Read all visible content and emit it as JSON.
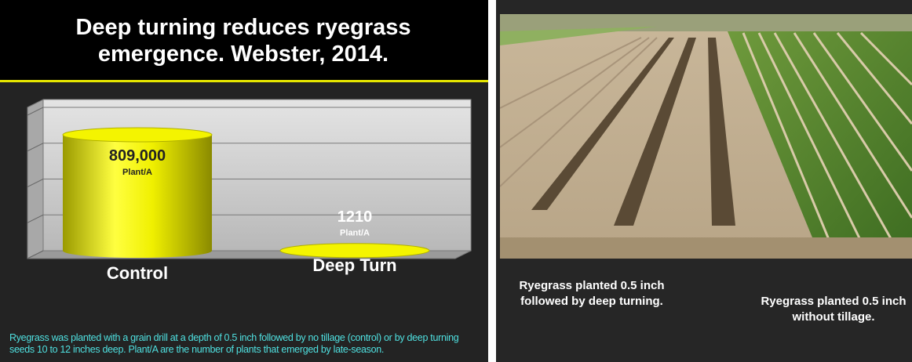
{
  "chart_data": {
    "type": "bar",
    "title": "Deep turning reduces ryegrass emergence.  Webster, 2014.",
    "categories": [
      "Control",
      "Deep Turn"
    ],
    "values": [
      809000,
      1210
    ],
    "value_labels": [
      "809,000",
      "1210"
    ],
    "value_unit": "Plant/A",
    "color": "#e8e800",
    "ylim": [
      0,
      1000000
    ],
    "yticks": [
      0,
      250000,
      500000,
      750000,
      1000000
    ],
    "grid": true
  },
  "slide": {
    "caption": "Ryegrass was planted with a grain drill at a depth of 0.5 inch followed by no tillage (control) or by deep turning seeds 10 to 12 inches deep.  Plant/A are the number of plants that emerged by late-season.",
    "photo_captions": [
      "Ryegrass planted 0.5 inch followed by deep turning.",
      "Ryegrass planted 0.5 inch without tillage."
    ]
  }
}
